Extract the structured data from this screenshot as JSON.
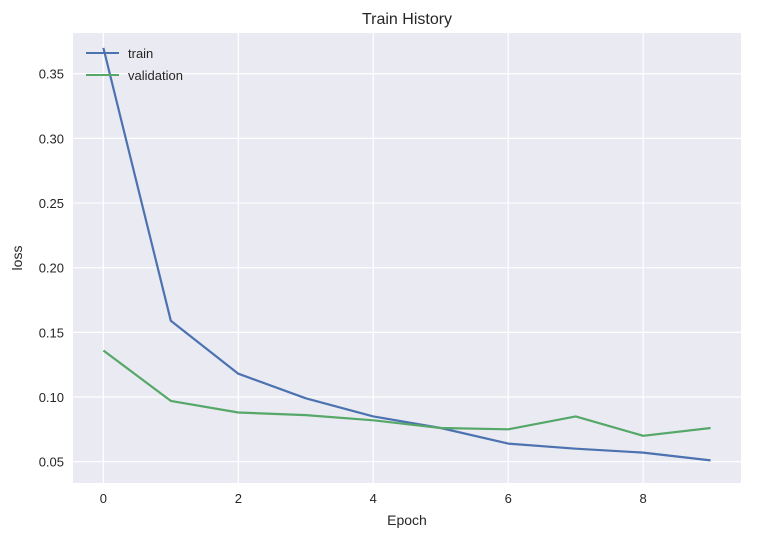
{
  "chart_data": {
    "type": "line",
    "title": "Train History",
    "xlabel": "Epoch",
    "ylabel": "loss",
    "x": [
      0,
      1,
      2,
      3,
      4,
      5,
      6,
      7,
      8,
      9
    ],
    "xlim": [
      -0.45,
      9.45
    ],
    "ylim": [
      0.0335,
      0.3815
    ],
    "xticks": [
      0,
      2,
      4,
      6,
      8
    ],
    "yticks": [
      0.05,
      0.1,
      0.15,
      0.2,
      0.25,
      0.3,
      0.35
    ],
    "ytick_labels": [
      "0.05",
      "0.10",
      "0.15",
      "0.20",
      "0.25",
      "0.30",
      "0.35"
    ],
    "grid": true,
    "legend_position": "top-left",
    "style": {
      "background": "#eaeaf2",
      "grid_color": "#ffffff"
    },
    "series": [
      {
        "name": "train",
        "color": "#4c72b0",
        "values": [
          0.37,
          0.159,
          0.118,
          0.099,
          0.085,
          0.076,
          0.064,
          0.06,
          0.057,
          0.051
        ]
      },
      {
        "name": "validation",
        "color": "#55a868",
        "values": [
          0.136,
          0.097,
          0.088,
          0.086,
          0.082,
          0.076,
          0.075,
          0.085,
          0.07,
          0.076
        ]
      }
    ]
  }
}
